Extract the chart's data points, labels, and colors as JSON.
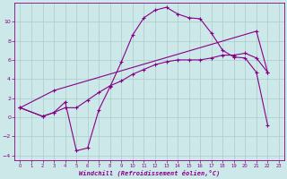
{
  "xlabel": "Windchill (Refroidissement éolien,°C)",
  "xlim": [
    -0.5,
    23.5
  ],
  "ylim": [
    -4.5,
    12
  ],
  "xticks": [
    0,
    1,
    2,
    3,
    4,
    5,
    6,
    7,
    8,
    9,
    10,
    11,
    12,
    13,
    14,
    15,
    16,
    17,
    18,
    19,
    20,
    21,
    22,
    23
  ],
  "yticks": [
    -4,
    -2,
    0,
    2,
    4,
    6,
    8,
    10
  ],
  "bg_color": "#cce8e8",
  "line_color": "#880088",
  "grid_color": "#aacccc",
  "curves": [
    {
      "x": [
        0,
        3,
        21,
        22
      ],
      "y": [
        1.0,
        2.8,
        9.0,
        4.7
      ]
    },
    {
      "x": [
        0,
        2,
        3,
        4,
        5,
        6,
        7,
        8,
        9,
        10,
        11,
        12,
        13,
        14,
        15,
        16,
        17,
        18,
        19,
        20,
        21,
        22
      ],
      "y": [
        1.0,
        0.1,
        0.5,
        1.6,
        -3.5,
        -3.2,
        0.8,
        3.2,
        5.8,
        8.6,
        10.4,
        11.2,
        11.5,
        10.8,
        10.4,
        10.3,
        8.8,
        7.0,
        6.3,
        6.2,
        4.7,
        -0.8
      ]
    },
    {
      "x": [
        0,
        2,
        3,
        4,
        5,
        6,
        7,
        8,
        9,
        10,
        11,
        12,
        13,
        14,
        15,
        16,
        17,
        18,
        19,
        20,
        21,
        22
      ],
      "y": [
        1.0,
        0.1,
        0.5,
        1.0,
        1.0,
        1.8,
        2.6,
        3.3,
        3.8,
        4.5,
        5.0,
        5.5,
        5.8,
        6.0,
        6.0,
        6.0,
        6.2,
        6.5,
        6.5,
        6.7,
        6.2,
        4.7
      ]
    }
  ]
}
